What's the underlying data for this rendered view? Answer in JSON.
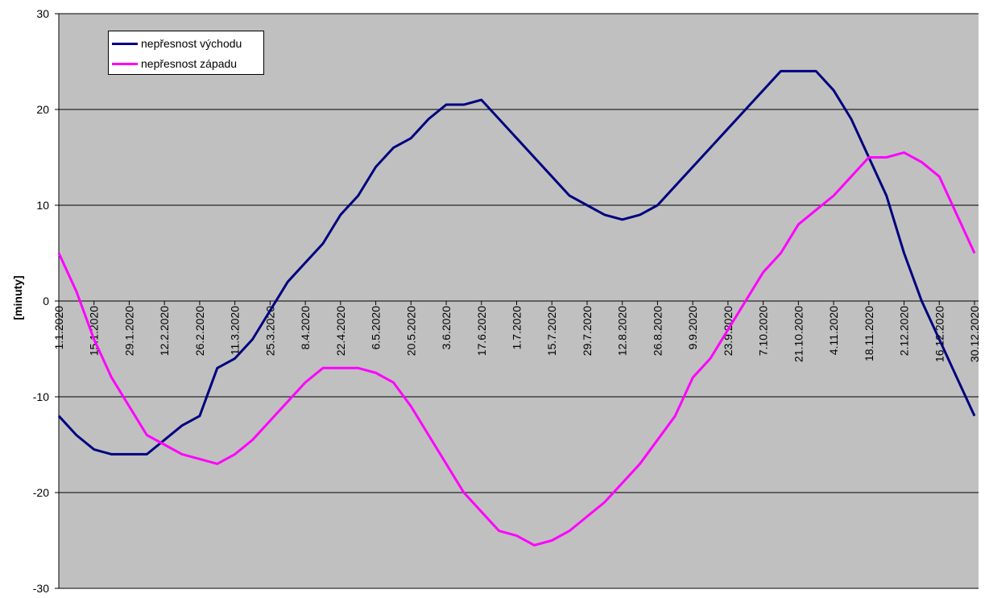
{
  "chart_data": {
    "type": "line",
    "title": "",
    "xlabel": "",
    "ylabel": "[minuty]",
    "ylim": [
      -30,
      30
    ],
    "yticks": [
      -30,
      -20,
      -10,
      0,
      10,
      20,
      30
    ],
    "xlim_days": [
      0,
      364
    ],
    "grid": "horizontal",
    "legend_position": "top-left",
    "x_tick_labels": [
      "1.1.2020",
      "15.1.2020",
      "29.1.2020",
      "12.2.2020",
      "26.2.2020",
      "11.3.2020",
      "25.3.2020",
      "8.4.2020",
      "22.4.2020",
      "6.5.2020",
      "20.5.2020",
      "3.6.2020",
      "17.6.2020",
      "1.7.2020",
      "15.7.2020",
      "29.7.2020",
      "12.8.2020",
      "26.8.2020",
      "9.9.2020",
      "23.9.2020",
      "7.10.2020",
      "21.10.2020",
      "4.11.2020",
      "18.11.2020",
      "2.12.2020",
      "16.12.2020",
      "30.12.2020"
    ],
    "x_day_of_year": [
      0,
      7,
      14,
      21,
      28,
      35,
      42,
      49,
      56,
      63,
      70,
      77,
      84,
      91,
      98,
      105,
      112,
      119,
      126,
      133,
      140,
      147,
      154,
      161,
      168,
      175,
      182,
      189,
      196,
      203,
      210,
      217,
      224,
      231,
      238,
      245,
      252,
      259,
      266,
      273,
      280,
      287,
      294,
      301,
      308,
      315,
      322,
      329,
      336,
      343,
      350,
      357,
      364
    ],
    "series": [
      {
        "name": "nepřesnost východu",
        "color": "#000080",
        "values": [
          -12,
          -14,
          -15.5,
          -16,
          -16,
          -16,
          -14.5,
          -13,
          -12,
          -7,
          -6,
          -4,
          -1,
          2,
          4,
          6,
          9,
          11,
          14,
          16,
          17,
          19,
          20.5,
          20.5,
          21,
          19,
          17,
          15,
          13,
          11,
          10,
          9,
          8.5,
          9,
          10,
          12,
          14,
          16,
          18,
          20,
          22,
          24,
          24,
          24,
          22,
          19,
          15,
          11,
          5,
          0,
          -4,
          -8,
          -12
        ]
      },
      {
        "name": "nepřesnost západu",
        "color": "#ff00ff",
        "values": [
          5,
          1,
          -4,
          -8,
          -11,
          -14,
          -15,
          -16,
          -16.5,
          -17,
          -16,
          -14.5,
          -12.5,
          -10.5,
          -8.5,
          -7,
          -7,
          -7,
          -7.5,
          -8.5,
          -11,
          -14,
          -17,
          -20,
          -22,
          -24,
          -24.5,
          -25.5,
          -25,
          -24,
          -22.5,
          -21,
          -19,
          -17,
          -14.5,
          -12,
          -8,
          -6,
          -3,
          0,
          3,
          5,
          8,
          9.5,
          11,
          13,
          15,
          15,
          15.5,
          14.5,
          13,
          9,
          5
        ]
      }
    ]
  }
}
